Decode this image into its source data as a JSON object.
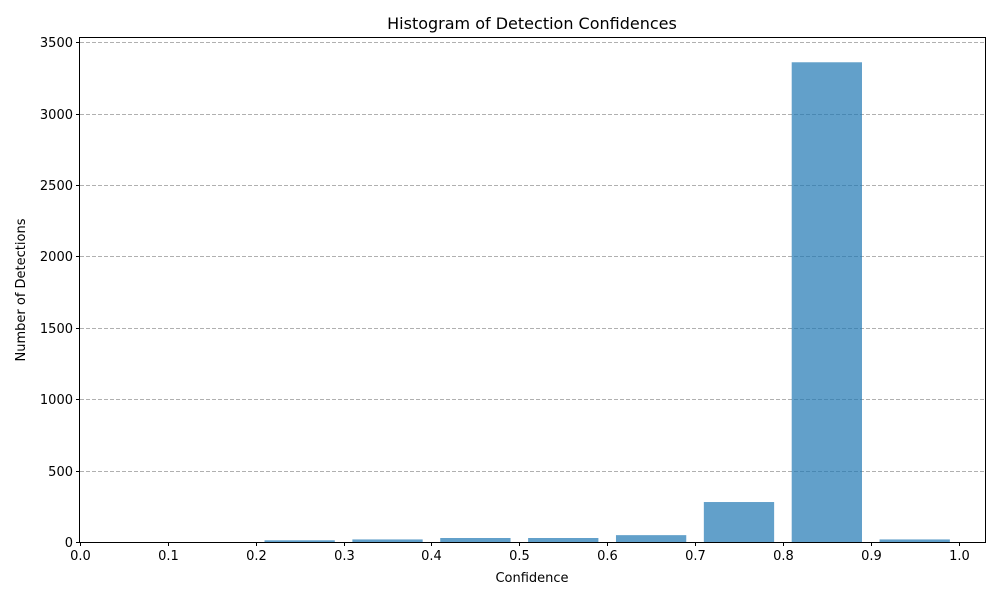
{
  "chart_data": {
    "type": "bar",
    "title": "Histogram of Detection Confidences",
    "xlabel": "Confidence",
    "ylabel": "Number of Detections",
    "xlim": [
      0.0,
      1.03
    ],
    "ylim": [
      0,
      3530
    ],
    "x_ticks": [
      "0.0",
      "0.1",
      "0.2",
      "0.3",
      "0.4",
      "0.5",
      "0.6",
      "0.7",
      "0.8",
      "0.9",
      "1.0"
    ],
    "y_ticks": [
      "0",
      "500",
      "1000",
      "1500",
      "2000",
      "2500",
      "3000",
      "3500"
    ],
    "grid": "y-dashed",
    "bar_color": "#1f77b4",
    "bins": [
      {
        "start": 0.0,
        "end": 0.1,
        "value": 0
      },
      {
        "start": 0.1,
        "end": 0.2,
        "value": 0
      },
      {
        "start": 0.2,
        "end": 0.3,
        "value": 12
      },
      {
        "start": 0.3,
        "end": 0.4,
        "value": 18
      },
      {
        "start": 0.4,
        "end": 0.5,
        "value": 28
      },
      {
        "start": 0.5,
        "end": 0.6,
        "value": 28
      },
      {
        "start": 0.6,
        "end": 0.7,
        "value": 48
      },
      {
        "start": 0.7,
        "end": 0.8,
        "value": 280
      },
      {
        "start": 0.8,
        "end": 0.9,
        "value": 3360
      },
      {
        "start": 0.9,
        "end": 1.0,
        "value": 18
      }
    ]
  }
}
